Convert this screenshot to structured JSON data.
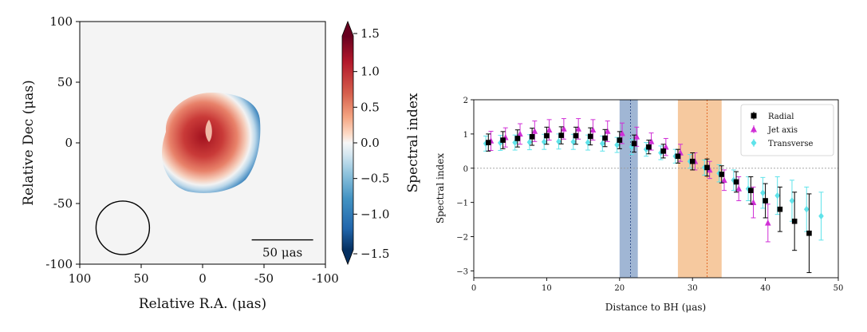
{
  "chart_data": [
    {
      "type": "heatmap",
      "xlabel": "Relative R.A. (μas)",
      "ylabel": "Relative Dec (μas)",
      "xlim": [
        100,
        -100
      ],
      "ylim": [
        -100,
        100
      ],
      "xticks": [
        "100",
        "50",
        "0",
        "-50",
        "-100"
      ],
      "yticks": [
        "100",
        "50",
        "0",
        "-50",
        "-100"
      ],
      "colorbar": {
        "label": "Spectral index",
        "range": [
          -1.5,
          1.5
        ],
        "ticks": [
          "1.5",
          "1.0",
          "0.5",
          "0.0",
          "−0.5",
          "−1.0",
          "−1.5"
        ],
        "colormap": "RdBu_r"
      },
      "scalebar_label": "50 μas",
      "beam": {
        "ra": 65,
        "dec": -70,
        "radius": 15
      },
      "source": {
        "center_ra": 0,
        "center_dec": 0,
        "outer_radius": 37,
        "peak_ra": -15,
        "peak_dec": 5,
        "peak_value": 1.3,
        "edge_value": -1.5
      }
    },
    {
      "type": "scatter",
      "xlabel": "Distance to BH (μas)",
      "ylabel": "Spectral index",
      "xlim": [
        0,
        50
      ],
      "ylim": [
        -3.2,
        2
      ],
      "xticks": [
        0,
        10,
        20,
        30,
        40,
        50
      ],
      "yticks": [
        2,
        1,
        0,
        -1,
        -2,
        -3
      ],
      "legend_position": "top-right",
      "reference_lines": [
        {
          "axis": "y",
          "value": 0,
          "style": "dotted",
          "color": "#999999"
        },
        {
          "axis": "x",
          "value": 21.5,
          "style": "dotted",
          "color": "#2c4a86"
        },
        {
          "axis": "x",
          "value": 32,
          "style": "dotted",
          "color": "#e0601c"
        }
      ],
      "bands": [
        {
          "x": [
            20,
            22.5
          ],
          "color": "#8fa9cd"
        },
        {
          "x": [
            28,
            34
          ],
          "color": "#f4c08e"
        }
      ],
      "series": [
        {
          "name": "Radial",
          "color": "#000000",
          "marker": "square",
          "offset": 0,
          "x": [
            2,
            4,
            6,
            8,
            10,
            12,
            14,
            16,
            18,
            20,
            22,
            24,
            26,
            28,
            30,
            32,
            34,
            36,
            38,
            40,
            42,
            44,
            46
          ],
          "y": [
            0.75,
            0.82,
            0.87,
            0.92,
            0.95,
            0.96,
            0.95,
            0.93,
            0.88,
            0.82,
            0.72,
            0.62,
            0.5,
            0.35,
            0.2,
            0.02,
            -0.18,
            -0.4,
            -0.65,
            -0.95,
            -1.2,
            -1.55,
            -1.9
          ],
          "err": [
            0.25,
            0.25,
            0.25,
            0.25,
            0.25,
            0.25,
            0.25,
            0.25,
            0.25,
            0.25,
            0.25,
            0.2,
            0.2,
            0.2,
            0.25,
            0.25,
            0.25,
            0.3,
            0.4,
            0.5,
            0.65,
            0.85,
            1.15
          ]
        },
        {
          "name": "Jet axis",
          "color": "#d02fd6",
          "marker": "triangle",
          "offset": 0.35,
          "x": [
            2,
            4,
            6,
            8,
            10,
            12,
            14,
            16,
            18,
            20,
            22,
            24,
            26,
            28,
            30,
            32,
            34,
            36,
            38,
            40
          ],
          "y": [
            0.8,
            0.9,
            1.0,
            1.08,
            1.12,
            1.15,
            1.15,
            1.12,
            1.08,
            1.02,
            0.92,
            0.78,
            0.62,
            0.45,
            0.2,
            -0.05,
            -0.35,
            -0.6,
            -1.0,
            -1.6
          ],
          "err": [
            0.28,
            0.28,
            0.3,
            0.3,
            0.3,
            0.3,
            0.3,
            0.3,
            0.3,
            0.3,
            0.28,
            0.25,
            0.25,
            0.25,
            0.25,
            0.25,
            0.3,
            0.35,
            0.45,
            0.55
          ]
        },
        {
          "name": "Transverse",
          "color": "#5fe3ea",
          "marker": "diamond",
          "offset": -0.35,
          "x": [
            2,
            4,
            6,
            8,
            10,
            12,
            14,
            16,
            18,
            20,
            22,
            24,
            26,
            28,
            30,
            32,
            34,
            36,
            38,
            40,
            42,
            44,
            46,
            48
          ],
          "y": [
            0.72,
            0.74,
            0.75,
            0.76,
            0.77,
            0.78,
            0.77,
            0.75,
            0.72,
            0.68,
            0.62,
            0.55,
            0.45,
            0.35,
            0.2,
            0.02,
            -0.15,
            -0.35,
            -0.6,
            -0.72,
            -0.8,
            -0.95,
            -1.2,
            -1.4
          ],
          "err": [
            0.22,
            0.22,
            0.22,
            0.22,
            0.22,
            0.22,
            0.22,
            0.22,
            0.22,
            0.22,
            0.22,
            0.2,
            0.2,
            0.2,
            0.2,
            0.22,
            0.25,
            0.3,
            0.35,
            0.45,
            0.55,
            0.6,
            0.65,
            0.7
          ]
        }
      ]
    }
  ]
}
